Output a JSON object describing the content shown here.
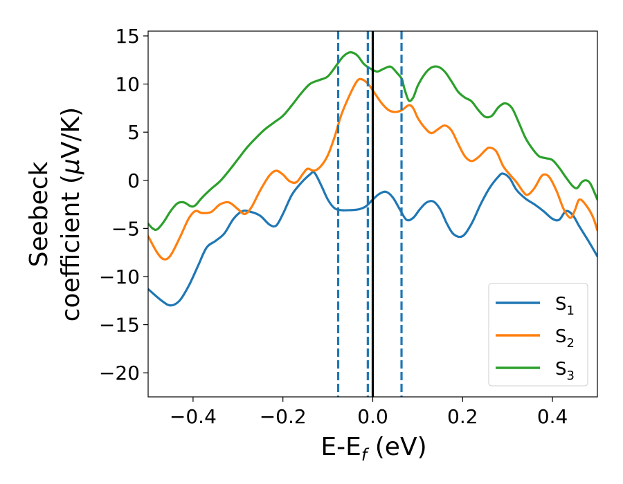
{
  "chart_data": {
    "type": "line",
    "xlabel_main": "E-E",
    "xlabel_sub": "f",
    "xlabel_unit": " (eV)",
    "ylabel_line1": "Seebeck",
    "ylabel_line2_pre": "coefficient  (",
    "ylabel_mu": "μ",
    "ylabel_line2_post": "V/K)",
    "xlim": [
      -0.5,
      0.5
    ],
    "ylim": [
      -22.5,
      15.5
    ],
    "x_ticks": [
      -0.4,
      -0.2,
      0.0,
      0.2,
      0.4
    ],
    "x_tick_labels": [
      "−0.4",
      "−0.2",
      "0.0",
      "0.2",
      "0.4"
    ],
    "y_ticks": [
      15,
      10,
      5,
      0,
      -5,
      -10,
      -15,
      -20
    ],
    "y_tick_labels": [
      "15",
      "10",
      "5",
      "0",
      "−5",
      "−10",
      "−15",
      "−20"
    ],
    "grid": false,
    "legend_position": "lower-right",
    "vertical_lines": [
      {
        "x": -0.077,
        "style": "dashed",
        "color": "#1f77b4"
      },
      {
        "x": -0.011,
        "style": "dashed",
        "color": "#1f77b4"
      },
      {
        "x": 0.064,
        "style": "dashed",
        "color": "#1f77b4"
      },
      {
        "x": 0.0,
        "style": "solid",
        "color": "#000000"
      }
    ],
    "series": [
      {
        "name": "S",
        "sub": "1",
        "color": "#1f77b4",
        "points": [
          [
            -0.5,
            -11.3
          ],
          [
            -0.47,
            -12.5
          ],
          [
            -0.45,
            -13.0
          ],
          [
            -0.43,
            -12.5
          ],
          [
            -0.41,
            -11.0
          ],
          [
            -0.39,
            -9.0
          ],
          [
            -0.37,
            -7.0
          ],
          [
            -0.35,
            -6.3
          ],
          [
            -0.33,
            -5.5
          ],
          [
            -0.31,
            -4.0
          ],
          [
            -0.29,
            -3.2
          ],
          [
            -0.27,
            -3.3
          ],
          [
            -0.25,
            -3.7
          ],
          [
            -0.23,
            -4.6
          ],
          [
            -0.215,
            -4.7
          ],
          [
            -0.2,
            -3.5
          ],
          [
            -0.18,
            -1.5
          ],
          [
            -0.16,
            -0.3
          ],
          [
            -0.14,
            0.6
          ],
          [
            -0.13,
            0.8
          ],
          [
            -0.115,
            -0.5
          ],
          [
            -0.1,
            -2.0
          ],
          [
            -0.085,
            -2.9
          ],
          [
            -0.07,
            -3.1
          ],
          [
            -0.05,
            -3.1
          ],
          [
            -0.03,
            -3.0
          ],
          [
            -0.015,
            -2.7
          ],
          [
            0.0,
            -2.0
          ],
          [
            0.015,
            -1.4
          ],
          [
            0.03,
            -1.2
          ],
          [
            0.045,
            -1.8
          ],
          [
            0.06,
            -3.0
          ],
          [
            0.075,
            -4.1
          ],
          [
            0.09,
            -3.9
          ],
          [
            0.105,
            -3.0
          ],
          [
            0.12,
            -2.3
          ],
          [
            0.135,
            -2.2
          ],
          [
            0.15,
            -3.0
          ],
          [
            0.165,
            -4.5
          ],
          [
            0.18,
            -5.6
          ],
          [
            0.2,
            -5.8
          ],
          [
            0.22,
            -4.5
          ],
          [
            0.24,
            -2.5
          ],
          [
            0.26,
            -0.8
          ],
          [
            0.28,
            0.4
          ],
          [
            0.29,
            0.7
          ],
          [
            0.305,
            0.2
          ],
          [
            0.32,
            -1.0
          ],
          [
            0.34,
            -1.9
          ],
          [
            0.36,
            -2.5
          ],
          [
            0.38,
            -3.2
          ],
          [
            0.4,
            -4.0
          ],
          [
            0.415,
            -4.1
          ],
          [
            0.43,
            -3.2
          ],
          [
            0.445,
            -3.6
          ],
          [
            0.46,
            -4.8
          ],
          [
            0.48,
            -6.3
          ],
          [
            0.5,
            -7.9
          ]
        ]
      },
      {
        "name": "S",
        "sub": "2",
        "color": "#ff7f0e",
        "points": [
          [
            -0.5,
            -5.8
          ],
          [
            -0.48,
            -7.5
          ],
          [
            -0.465,
            -8.2
          ],
          [
            -0.45,
            -7.8
          ],
          [
            -0.43,
            -6.0
          ],
          [
            -0.41,
            -4.0
          ],
          [
            -0.395,
            -3.2
          ],
          [
            -0.38,
            -3.4
          ],
          [
            -0.36,
            -3.3
          ],
          [
            -0.34,
            -2.5
          ],
          [
            -0.32,
            -2.3
          ],
          [
            -0.3,
            -3.0
          ],
          [
            -0.285,
            -3.5
          ],
          [
            -0.27,
            -2.8
          ],
          [
            -0.25,
            -1.0
          ],
          [
            -0.23,
            0.5
          ],
          [
            -0.215,
            1.0
          ],
          [
            -0.2,
            0.6
          ],
          [
            -0.185,
            -0.1
          ],
          [
            -0.17,
            -0.2
          ],
          [
            -0.155,
            0.7
          ],
          [
            -0.145,
            1.2
          ],
          [
            -0.13,
            1.0
          ],
          [
            -0.115,
            1.5
          ],
          [
            -0.1,
            2.6
          ],
          [
            -0.085,
            4.5
          ],
          [
            -0.07,
            6.8
          ],
          [
            -0.05,
            9.0
          ],
          [
            -0.035,
            10.3
          ],
          [
            -0.025,
            10.5
          ],
          [
            -0.01,
            10.0
          ],
          [
            0.005,
            9.0
          ],
          [
            0.02,
            8.0
          ],
          [
            0.035,
            7.3
          ],
          [
            0.05,
            7.1
          ],
          [
            0.065,
            7.3
          ],
          [
            0.08,
            7.8
          ],
          [
            0.09,
            7.5
          ],
          [
            0.1,
            6.5
          ],
          [
            0.115,
            5.5
          ],
          [
            0.13,
            4.9
          ],
          [
            0.145,
            5.3
          ],
          [
            0.16,
            5.7
          ],
          [
            0.175,
            5.2
          ],
          [
            0.19,
            3.8
          ],
          [
            0.205,
            2.5
          ],
          [
            0.22,
            2.0
          ],
          [
            0.235,
            2.4
          ],
          [
            0.25,
            3.1
          ],
          [
            0.26,
            3.4
          ],
          [
            0.275,
            3.0
          ],
          [
            0.29,
            1.5
          ],
          [
            0.305,
            0.6
          ],
          [
            0.32,
            -0.2
          ],
          [
            0.335,
            -1.2
          ],
          [
            0.345,
            -1.5
          ],
          [
            0.36,
            -0.8
          ],
          [
            0.375,
            0.4
          ],
          [
            0.385,
            0.6
          ],
          [
            0.395,
            0.2
          ],
          [
            0.41,
            -1.2
          ],
          [
            0.425,
            -3.0
          ],
          [
            0.44,
            -3.9
          ],
          [
            0.45,
            -3.1
          ],
          [
            0.46,
            -2.0
          ],
          [
            0.475,
            -2.6
          ],
          [
            0.49,
            -3.8
          ],
          [
            0.5,
            -5.2
          ]
        ]
      },
      {
        "name": "S",
        "sub": "3",
        "color": "#2ca02c",
        "points": [
          [
            -0.5,
            -4.5
          ],
          [
            -0.49,
            -5.0
          ],
          [
            -0.48,
            -5.1
          ],
          [
            -0.465,
            -4.3
          ],
          [
            -0.45,
            -3.2
          ],
          [
            -0.435,
            -2.4
          ],
          [
            -0.42,
            -2.3
          ],
          [
            -0.405,
            -2.7
          ],
          [
            -0.395,
            -2.6
          ],
          [
            -0.38,
            -1.8
          ],
          [
            -0.36,
            -0.9
          ],
          [
            -0.34,
            -0.1
          ],
          [
            -0.32,
            1.0
          ],
          [
            -0.3,
            2.2
          ],
          [
            -0.28,
            3.4
          ],
          [
            -0.26,
            4.4
          ],
          [
            -0.24,
            5.3
          ],
          [
            -0.22,
            6.0
          ],
          [
            -0.2,
            6.7
          ],
          [
            -0.18,
            7.8
          ],
          [
            -0.16,
            9.0
          ],
          [
            -0.14,
            10.0
          ],
          [
            -0.12,
            10.4
          ],
          [
            -0.1,
            10.8
          ],
          [
            -0.08,
            12.0
          ],
          [
            -0.065,
            12.9
          ],
          [
            -0.05,
            13.3
          ],
          [
            -0.035,
            13.0
          ],
          [
            -0.02,
            12.1
          ],
          [
            -0.005,
            11.6
          ],
          [
            0.01,
            11.3
          ],
          [
            0.025,
            11.6
          ],
          [
            0.04,
            11.8
          ],
          [
            0.055,
            11.1
          ],
          [
            0.065,
            10.5
          ],
          [
            0.07,
            9.6
          ],
          [
            0.08,
            8.3
          ],
          [
            0.09,
            8.6
          ],
          [
            0.1,
            9.8
          ],
          [
            0.115,
            11.0
          ],
          [
            0.13,
            11.7
          ],
          [
            0.145,
            11.8
          ],
          [
            0.16,
            11.3
          ],
          [
            0.175,
            10.3
          ],
          [
            0.19,
            9.2
          ],
          [
            0.205,
            8.6
          ],
          [
            0.22,
            8.2
          ],
          [
            0.235,
            7.3
          ],
          [
            0.25,
            6.6
          ],
          [
            0.265,
            6.7
          ],
          [
            0.28,
            7.6
          ],
          [
            0.295,
            8.0
          ],
          [
            0.31,
            7.5
          ],
          [
            0.325,
            6.0
          ],
          [
            0.34,
            4.4
          ],
          [
            0.355,
            3.3
          ],
          [
            0.37,
            2.5
          ],
          [
            0.385,
            2.3
          ],
          [
            0.4,
            2.1
          ],
          [
            0.415,
            1.3
          ],
          [
            0.43,
            0.3
          ],
          [
            0.445,
            -0.6
          ],
          [
            0.455,
            -0.8
          ],
          [
            0.465,
            -0.2
          ],
          [
            0.475,
            0.0
          ],
          [
            0.485,
            -0.4
          ],
          [
            0.5,
            -2.0
          ]
        ]
      }
    ]
  }
}
